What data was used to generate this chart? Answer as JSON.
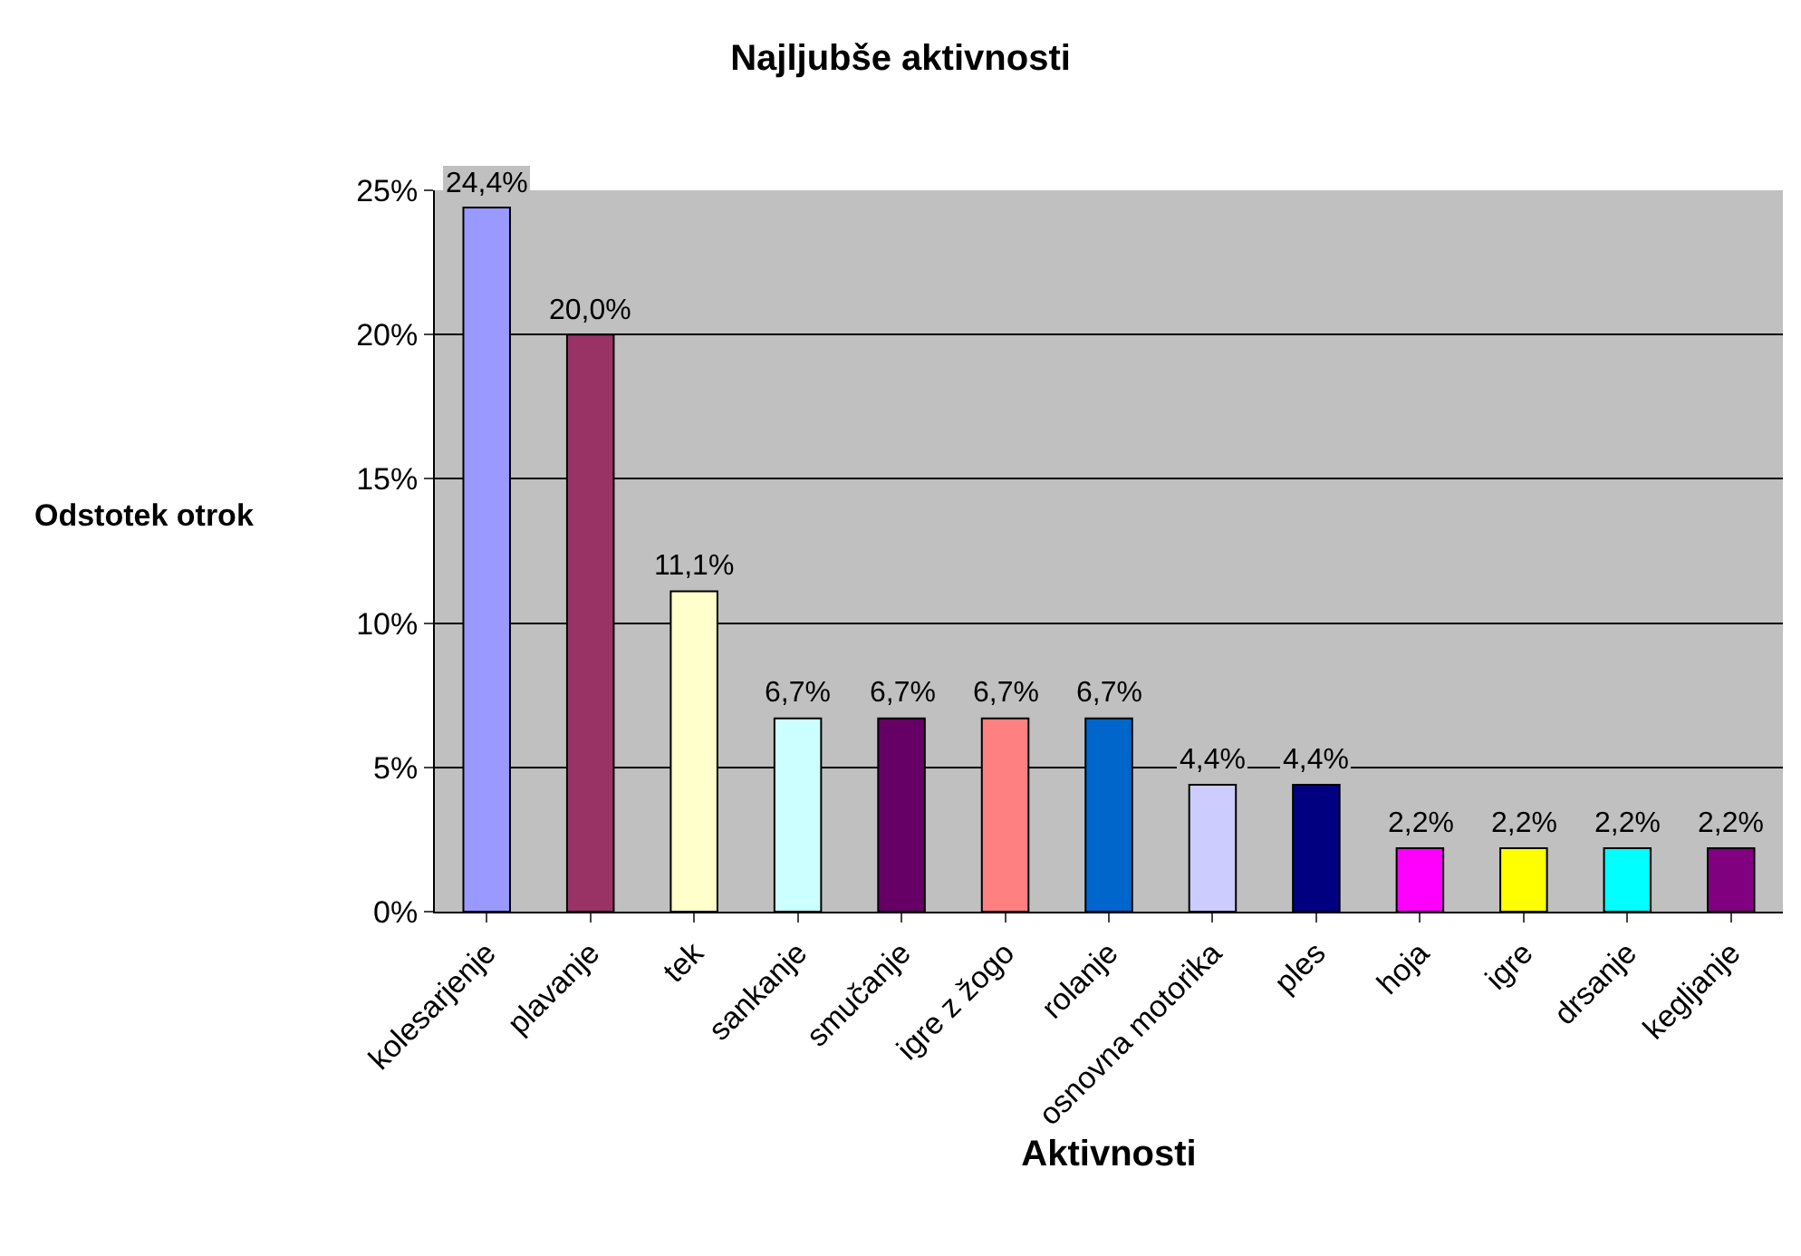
{
  "chart_data": {
    "type": "bar",
    "title": "Najljubše aktivnosti",
    "xlabel": "Aktivnosti",
    "ylabel": "Odstotek otrok",
    "categories": [
      "kolesarjenje",
      "plavanje",
      "tek",
      "sankanje",
      "smučanje",
      "igre z žogo",
      "rolanje",
      "osnovna motorika",
      "ples",
      "hoja",
      "igre",
      "drsanje",
      "kegljanje"
    ],
    "values": [
      24.4,
      20.0,
      11.1,
      6.7,
      6.7,
      6.7,
      6.7,
      4.4,
      4.4,
      2.2,
      2.2,
      2.2,
      2.2
    ],
    "colors": [
      "#9999ff",
      "#993366",
      "#ffffcc",
      "#ccffff",
      "#660066",
      "#ff8080",
      "#0066cc",
      "#ccccff",
      "#000080",
      "#ff00ff",
      "#ffff00",
      "#00ffff",
      "#800080"
    ],
    "value_labels": [
      "24,4%",
      "20,0%",
      "11,1%",
      "6,7%",
      "6,7%",
      "6,7%",
      "6,7%",
      "4,4%",
      "4,4%",
      "2,2%",
      "2,2%",
      "2,2%",
      "2,2%"
    ],
    "ylim": [
      0,
      25
    ],
    "yticks": [
      {
        "value": 0,
        "label": "0%"
      },
      {
        "value": 5,
        "label": "5%"
      },
      {
        "value": 10,
        "label": "10%"
      },
      {
        "value": 15,
        "label": "15%"
      },
      {
        "value": 20,
        "label": "20%"
      },
      {
        "value": 25,
        "label": "25%"
      }
    ],
    "grid": "y",
    "legend": false
  }
}
